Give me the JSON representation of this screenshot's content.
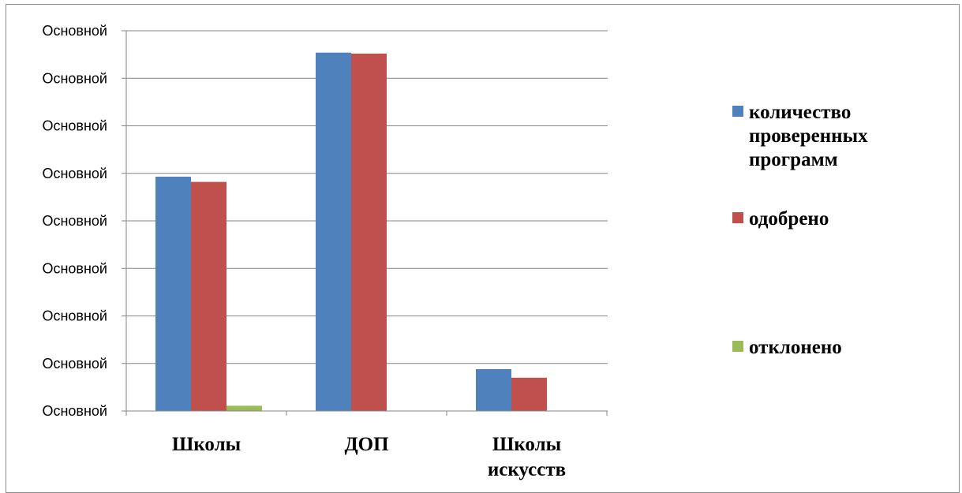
{
  "chart_data": {
    "type": "bar",
    "title": "",
    "xlabel": "",
    "ylabel": "",
    "categories": [
      [
        "Школы"
      ],
      [
        "ДОП"
      ],
      [
        "Школы",
        "искусств"
      ]
    ],
    "y_tick_labels": [
      "Основной",
      "Основной",
      "Основной",
      "Основной",
      "Основной",
      "Основной",
      "Основной",
      "Основной",
      "Основной"
    ],
    "ylim": [
      0,
      8
    ],
    "grid": true,
    "legend_position": "right",
    "series": [
      {
        "name": [
          "количество",
          "проверенных",
          "программ"
        ],
        "color": "#4f81bd",
        "values": [
          4.93,
          7.54,
          0.88
        ]
      },
      {
        "name": [
          "одобрено"
        ],
        "color": "#c0504d",
        "values": [
          4.82,
          7.52,
          0.7
        ]
      },
      {
        "name": [
          "отклонено"
        ],
        "color": "#9bbb59",
        "values": [
          0.11,
          0,
          0
        ]
      }
    ]
  }
}
